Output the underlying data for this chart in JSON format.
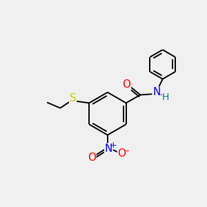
{
  "bg_color": "#f0f0f0",
  "bond_color": "#000000",
  "atom_colors": {
    "O": "#ff0000",
    "N_amide": "#0000ff",
    "H": "#008080",
    "S": "#cccc00",
    "N_nitro": "#0000ff",
    "O_nitro": "#ff0000"
  },
  "figsize": [
    3.0,
    3.0
  ],
  "dpi": 100
}
